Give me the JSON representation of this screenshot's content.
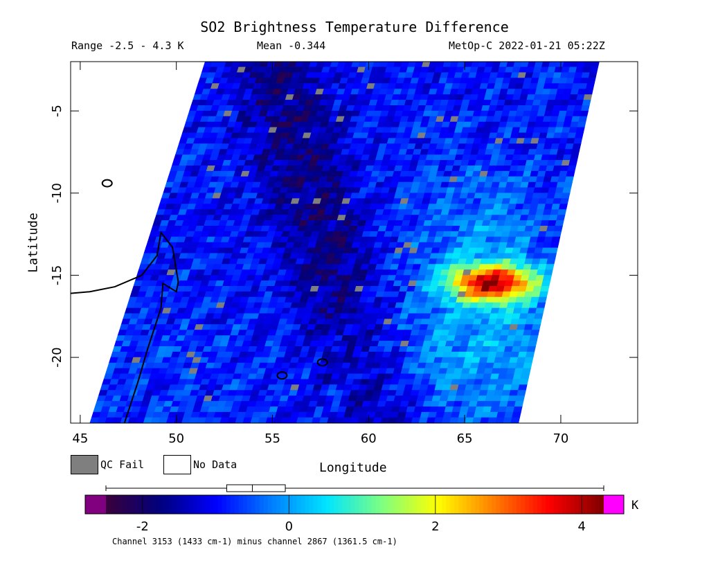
{
  "header": {
    "title": "SO2 Brightness Temperature Difference",
    "range": "Range -2.5 - 4.3 K",
    "mean": "Mean -0.344",
    "satellite_time": "MetOp-C 2022-01-21 05:22Z"
  },
  "legend": {
    "qc_fail": "QC Fail",
    "no_data": "No Data",
    "colors": {
      "qc_fail": "#7f7f7f",
      "no_data": "#ffffff"
    }
  },
  "colorbar": {
    "unit": "K",
    "footnote": "Channel 3153 (1433 cm-1) minus channel 2867 (1361.5 cm-1)",
    "ticks": [
      -2,
      0,
      2,
      4
    ],
    "tick_labels": [
      "-2",
      "0",
      "2",
      "4"
    ],
    "range": [
      -2.5,
      4.3
    ],
    "under_color": "#800080",
    "over_color": "#ff00ff",
    "stops": [
      "#3a003a",
      "#00007f",
      "#0000ff",
      "#007fff",
      "#00e5ff",
      "#7fff7f",
      "#ffff00",
      "#ff7f00",
      "#ff0000",
      "#7f0000"
    ],
    "boxplot": {
      "min": -2.5,
      "q1": -0.85,
      "median": -0.5,
      "q3": -0.05,
      "max": 4.3
    }
  },
  "chart_data": {
    "type": "heatmap",
    "title": "SO2 Brightness Temperature Difference",
    "xlabel": "Longitude",
    "ylabel": "Latitude",
    "xlim": [
      44.5,
      74
    ],
    "ylim": [
      -24,
      -2
    ],
    "x_ticks": [
      45,
      50,
      55,
      60,
      65,
      70
    ],
    "y_ticks": [
      -5,
      -10,
      -15,
      -20
    ],
    "x_tick_labels": [
      "45",
      "50",
      "55",
      "60",
      "65",
      "70"
    ],
    "y_tick_labels": [
      "-5",
      "-10",
      "-15",
      "-20"
    ],
    "swath_corners": [
      [
        51.5,
        -2
      ],
      [
        72,
        -2
      ],
      [
        67.8,
        -24
      ],
      [
        45.5,
        -24
      ]
    ],
    "features": [
      {
        "name": "SO2 plume",
        "lon": 66.5,
        "lat": -15.5,
        "value": 3.5
      },
      {
        "name": "low band",
        "lon": 57.5,
        "lat": -12,
        "value": -1.8
      }
    ],
    "coastline": [
      [
        44.5,
        -16.1
      ],
      [
        45.5,
        -16.0
      ],
      [
        46.8,
        -15.7
      ],
      [
        48.2,
        -15.0
      ],
      [
        49.0,
        -13.8
      ],
      [
        49.2,
        -12.4
      ],
      [
        49.8,
        -13.3
      ],
      [
        50.1,
        -15.4
      ],
      [
        50.0,
        -16.0
      ],
      [
        49.3,
        -15.5
      ],
      [
        49.2,
        -17.0
      ],
      [
        48.5,
        -19.5
      ],
      [
        48.0,
        -21.5
      ],
      [
        47.3,
        -24.0
      ]
    ],
    "islands": [
      [
        55.5,
        -21.1
      ],
      [
        57.6,
        -20.3
      ],
      [
        46.4,
        -9.4
      ]
    ]
  }
}
